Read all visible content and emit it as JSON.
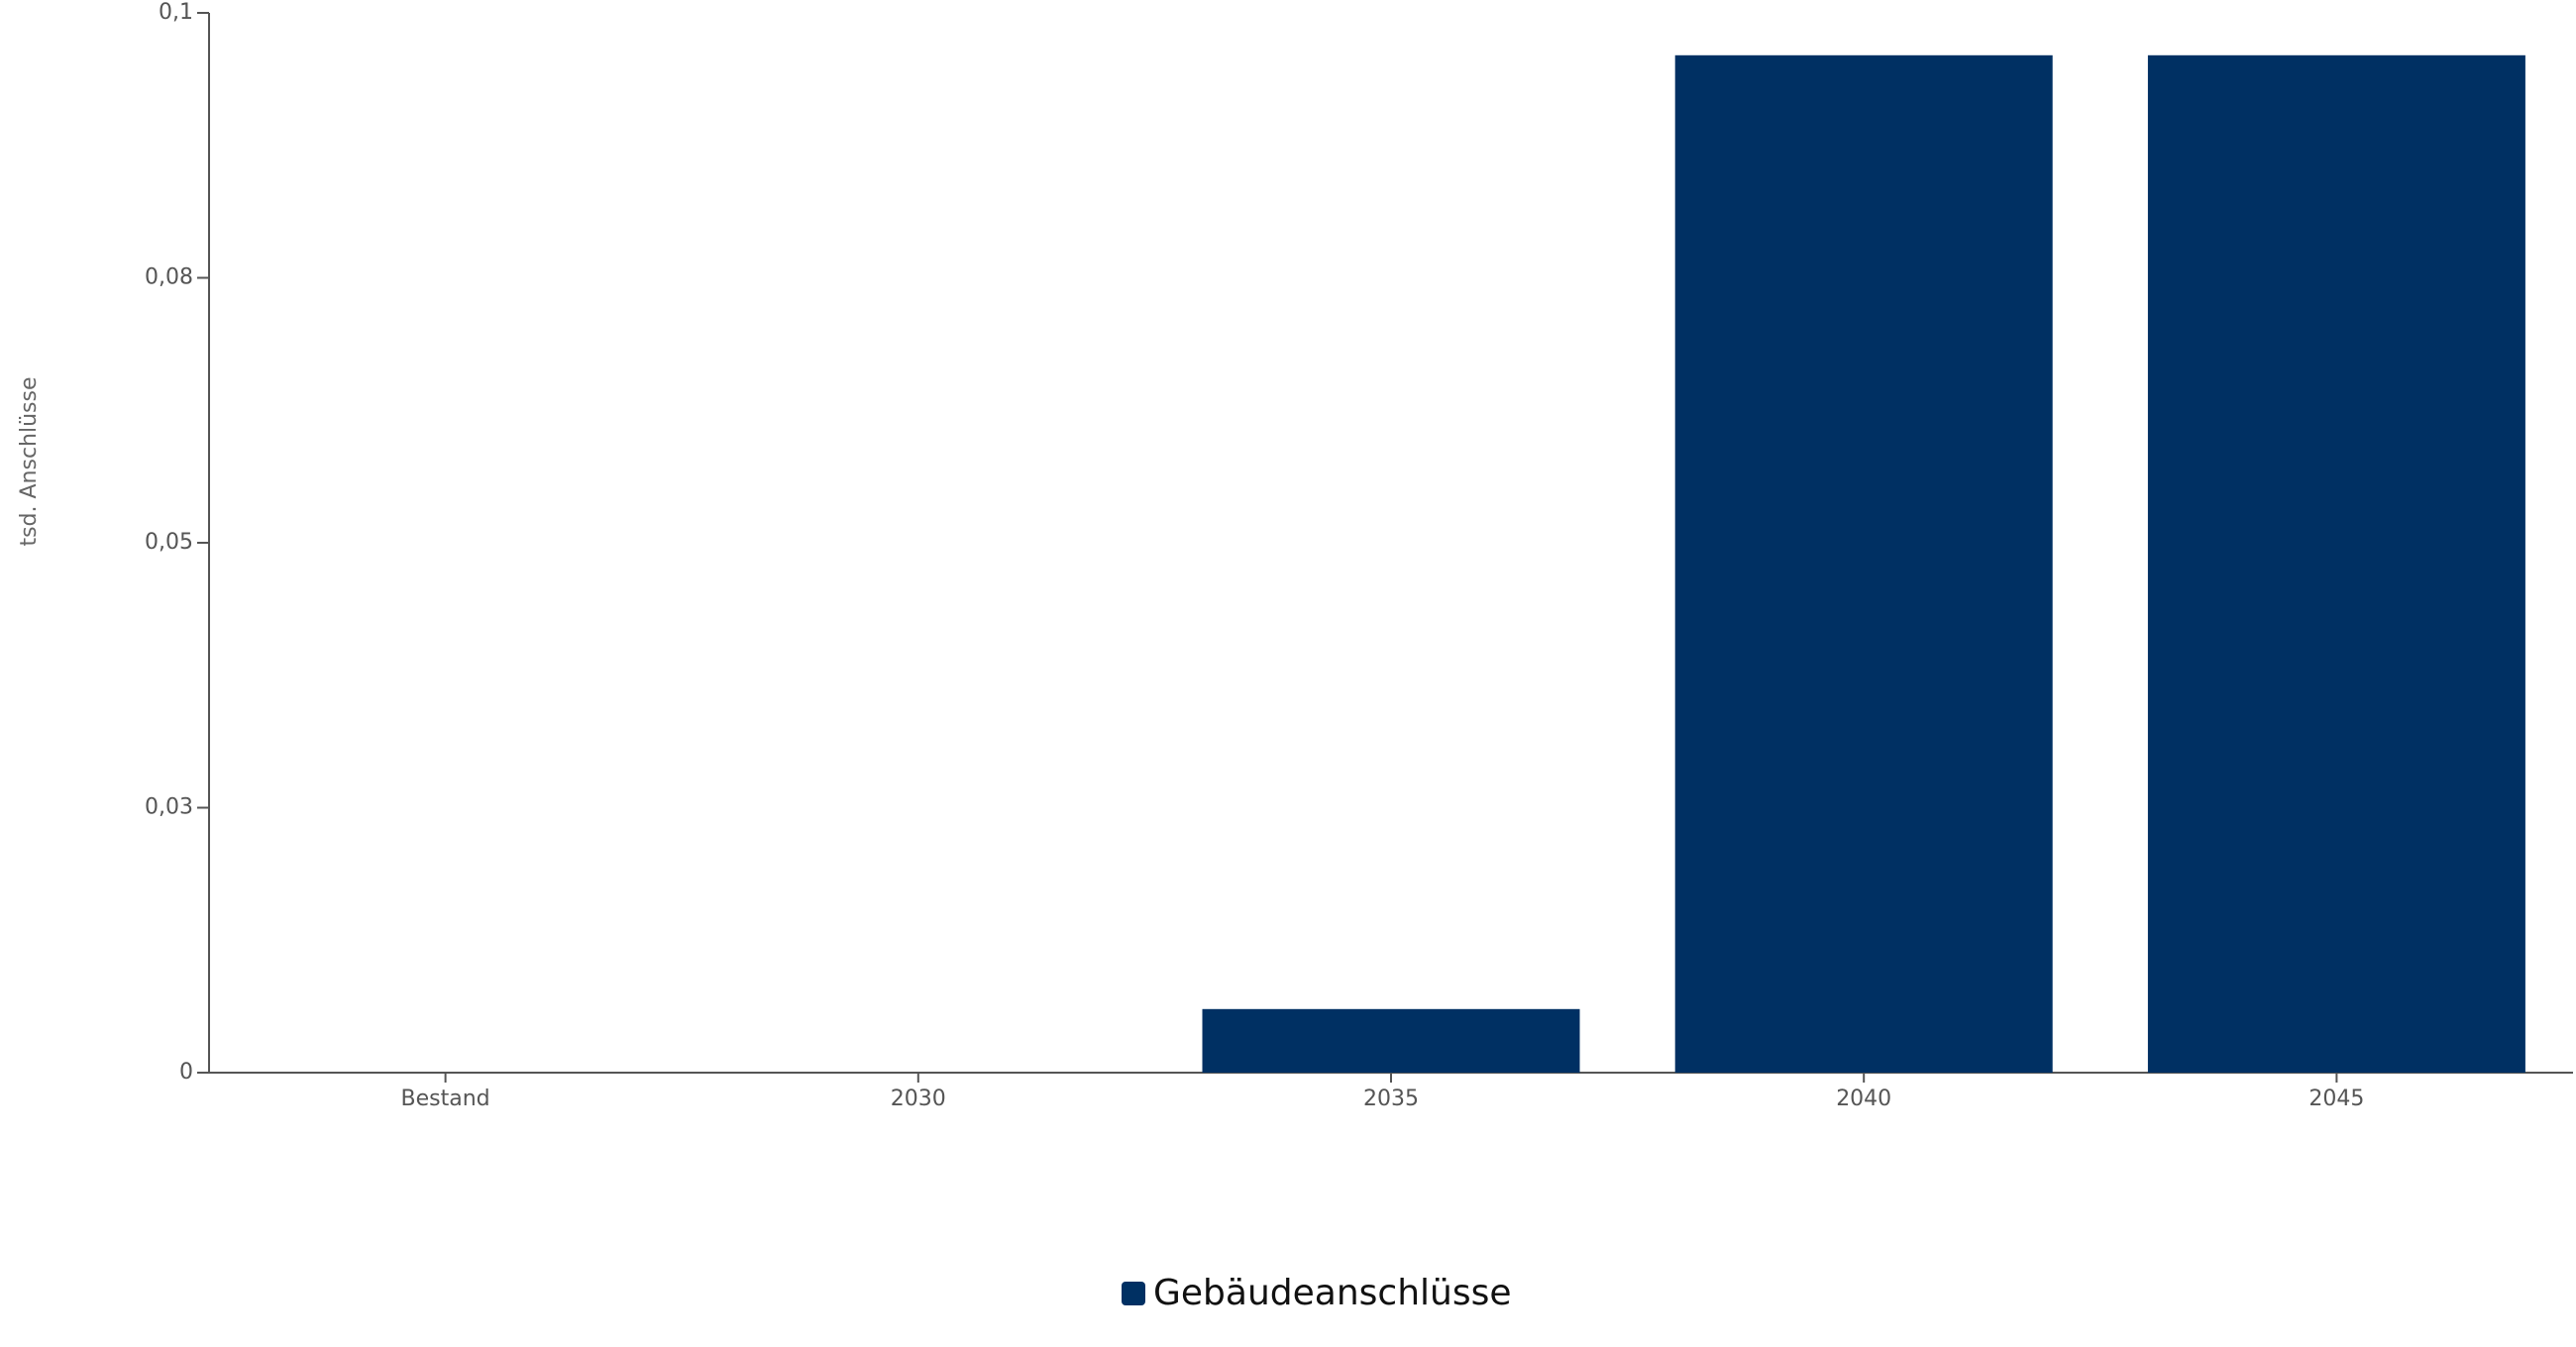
{
  "chart_data": {
    "type": "bar",
    "y_axis_label": "tsd. Anschlüsse",
    "categories": [
      "Bestand",
      "2030",
      "2035",
      "2040",
      "2045"
    ],
    "series": [
      {
        "name": "Gebäudeanschlüsse",
        "color": "#003063",
        "values": [
          0,
          0,
          0.006,
          0.096,
          0.096
        ]
      }
    ],
    "ylim": [
      0,
      0.1
    ],
    "yticks": [
      0,
      {
        "value": 0.025,
        "label": "0,03"
      },
      {
        "value": 0.05,
        "label": "0,05"
      },
      {
        "value": 0.075,
        "label": "0,08"
      },
      {
        "value": 0.1,
        "label": "0,1"
      }
    ],
    "legend": "bottom"
  }
}
